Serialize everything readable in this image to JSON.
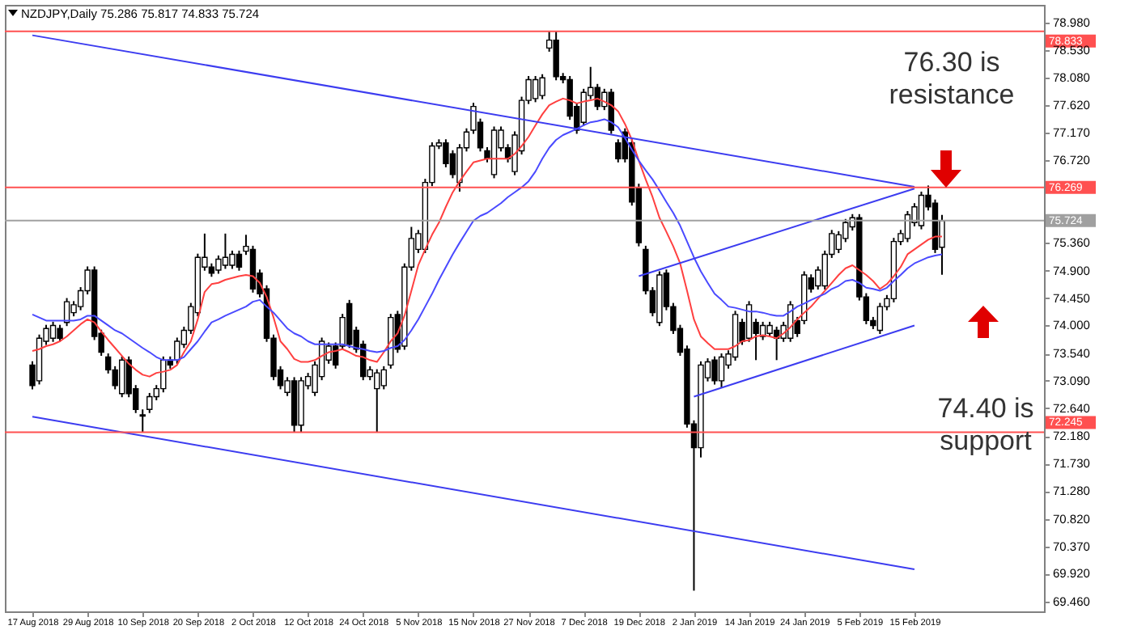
{
  "chart_data": {
    "type": "candlestick",
    "title": "NZDJPY,Daily 75.286 75.817 74.833 75.724",
    "categories": [
      "17 Aug 2018",
      null,
      null,
      null,
      null,
      null,
      null,
      null,
      "29 Aug 2018",
      null,
      null,
      null,
      null,
      null,
      null,
      null,
      "10 Sep 2018",
      null,
      null,
      null,
      null,
      null,
      null,
      null,
      "20 Sep 2018",
      null,
      null,
      null,
      null,
      null,
      null,
      null,
      "2 Oct 2018",
      null,
      null,
      null,
      null,
      null,
      null,
      null,
      "12 Oct 2018",
      null,
      null,
      null,
      null,
      null,
      null,
      null,
      "24 Oct 2018",
      null,
      null,
      null,
      null,
      null,
      null,
      null,
      "5 Nov 2018",
      null,
      null,
      null,
      null,
      null,
      null,
      null,
      "15 Nov 2018",
      null,
      null,
      null,
      null,
      null,
      null,
      null,
      "27 Nov 2018",
      null,
      null,
      null,
      null,
      null,
      null,
      null,
      "7 Dec 2018",
      null,
      null,
      null,
      null,
      null,
      null,
      null,
      "19 Dec 2018",
      null,
      null,
      null,
      null,
      null,
      null,
      null,
      "2 Jan 2019",
      null,
      null,
      null,
      null,
      null,
      null,
      null,
      "14 Jan 2019",
      null,
      null,
      null,
      null,
      null,
      null,
      null,
      "24 Jan 2019",
      null,
      null,
      null,
      null,
      null,
      null,
      null,
      "5 Feb 2019",
      null,
      null,
      null,
      null,
      null,
      null,
      null,
      "15 Feb 2019",
      null,
      null,
      null,
      null
    ],
    "ohlc": [
      [
        73.35,
        73.41,
        72.95,
        73.01
      ],
      [
        73.09,
        73.85,
        73.03,
        73.79
      ],
      [
        73.74,
        74.01,
        73.68,
        73.95
      ],
      [
        73.79,
        74.06,
        73.73,
        74.0
      ],
      [
        73.95,
        74.01,
        73.73,
        73.79
      ],
      [
        74.05,
        74.45,
        73.99,
        74.39
      ],
      [
        74.21,
        74.4,
        74.15,
        74.34
      ],
      [
        74.31,
        74.63,
        74.25,
        74.57
      ],
      [
        74.57,
        74.97,
        74.51,
        74.91
      ],
      [
        74.91,
        74.97,
        73.76,
        73.82
      ],
      [
        73.87,
        73.93,
        73.5,
        73.56
      ],
      [
        73.48,
        73.54,
        73.21,
        73.27
      ],
      [
        73.27,
        73.33,
        72.95,
        73.01
      ],
      [
        72.88,
        73.49,
        72.82,
        73.43
      ],
      [
        73.43,
        73.49,
        72.82,
        72.88
      ],
      [
        72.96,
        73.02,
        72.56,
        72.62
      ],
      [
        72.53,
        72.62,
        72.25,
        72.51
      ],
      [
        72.62,
        72.89,
        72.56,
        72.83
      ],
      [
        72.83,
        73.02,
        72.77,
        72.96
      ],
      [
        72.96,
        73.49,
        72.9,
        73.43
      ],
      [
        73.43,
        73.49,
        73.29,
        73.35
      ],
      [
        73.43,
        73.8,
        73.37,
        73.74
      ],
      [
        73.69,
        73.98,
        73.63,
        73.92
      ],
      [
        73.92,
        74.37,
        73.86,
        74.31
      ],
      [
        74.21,
        75.18,
        74.15,
        75.12
      ],
      [
        74.96,
        75.51,
        74.9,
        75.12
      ],
      [
        74.96,
        75.02,
        74.8,
        74.86
      ],
      [
        74.91,
        75.15,
        74.85,
        75.09
      ],
      [
        74.99,
        75.51,
        74.93,
        75.12
      ],
      [
        74.99,
        75.23,
        74.93,
        75.17
      ],
      [
        75.17,
        75.23,
        74.9,
        74.96
      ],
      [
        75.22,
        75.49,
        75.16,
        75.3
      ],
      [
        75.25,
        75.31,
        74.54,
        74.6
      ],
      [
        74.86,
        74.92,
        74.46,
        74.52
      ],
      [
        74.6,
        74.66,
        73.73,
        73.79
      ],
      [
        73.79,
        73.85,
        73.1,
        73.16
      ],
      [
        73.27,
        73.33,
        72.95,
        73.01
      ],
      [
        72.9,
        73.15,
        72.84,
        73.09
      ],
      [
        73.09,
        73.15,
        72.25,
        72.36
      ],
      [
        72.36,
        73.15,
        72.25,
        73.09
      ],
      [
        73.01,
        73.22,
        72.95,
        73.16
      ],
      [
        72.9,
        73.41,
        72.84,
        73.35
      ],
      [
        73.16,
        73.8,
        73.1,
        73.74
      ],
      [
        73.43,
        73.72,
        73.37,
        73.66
      ],
      [
        73.66,
        73.72,
        73.29,
        73.35
      ],
      [
        73.66,
        74.19,
        73.6,
        74.13
      ],
      [
        74.36,
        74.42,
        73.63,
        73.69
      ],
      [
        73.92,
        73.98,
        73.55,
        73.61
      ],
      [
        73.69,
        73.75,
        73.1,
        73.16
      ],
      [
        73.16,
        73.33,
        73.1,
        73.27
      ],
      [
        72.96,
        73.28,
        72.25,
        73.22
      ],
      [
        73.01,
        73.33,
        72.95,
        73.27
      ],
      [
        73.35,
        74.19,
        73.29,
        74.13
      ],
      [
        74.18,
        74.24,
        73.55,
        73.61
      ],
      [
        73.66,
        75.02,
        73.6,
        74.96
      ],
      [
        74.96,
        75.62,
        74.9,
        75.43
      ],
      [
        75.25,
        75.57,
        75.19,
        75.51
      ],
      [
        75.25,
        76.41,
        75.19,
        76.35
      ],
      [
        76.35,
        77.01,
        76.29,
        76.95
      ],
      [
        76.95,
        77.06,
        76.9,
        77.0
      ],
      [
        77.0,
        77.06,
        76.6,
        76.66
      ],
      [
        76.82,
        76.88,
        76.42,
        76.48
      ],
      [
        76.35,
        76.98,
        76.2,
        76.92
      ],
      [
        76.92,
        77.24,
        76.86,
        77.18
      ],
      [
        77.21,
        77.66,
        77.15,
        77.6
      ],
      [
        77.34,
        77.4,
        76.86,
        76.92
      ],
      [
        76.87,
        76.93,
        76.68,
        76.74
      ],
      [
        76.48,
        77.27,
        76.42,
        77.21
      ],
      [
        76.92,
        77.27,
        76.86,
        77.21
      ],
      [
        76.92,
        76.98,
        76.68,
        76.74
      ],
      [
        76.53,
        77.19,
        76.47,
        77.13
      ],
      [
        76.87,
        77.76,
        76.81,
        77.7
      ],
      [
        77.7,
        78.1,
        77.64,
        78.04
      ],
      [
        77.73,
        78.1,
        77.67,
        78.04
      ],
      [
        77.78,
        78.13,
        77.72,
        78.07
      ],
      [
        78.56,
        78.83,
        78.5,
        78.69
      ],
      [
        78.69,
        78.83,
        78.03,
        78.09
      ],
      [
        78.09,
        78.15,
        77.98,
        78.04
      ],
      [
        78.04,
        78.1,
        77.38,
        77.44
      ],
      [
        77.6,
        77.66,
        77.15,
        77.21
      ],
      [
        77.34,
        77.89,
        77.28,
        77.83
      ],
      [
        77.78,
        78.25,
        77.72,
        77.91
      ],
      [
        77.91,
        77.97,
        77.54,
        77.6
      ],
      [
        77.6,
        77.89,
        77.54,
        77.83
      ],
      [
        77.83,
        77.89,
        77.15,
        77.21
      ],
      [
        77.0,
        77.06,
        76.68,
        76.74
      ],
      [
        77.18,
        77.24,
        76.68,
        76.74
      ],
      [
        77.0,
        77.06,
        75.97,
        76.03
      ],
      [
        76.27,
        76.33,
        75.3,
        75.36
      ],
      [
        75.25,
        75.31,
        74.51,
        74.57
      ],
      [
        74.57,
        74.63,
        74.15,
        74.21
      ],
      [
        74.05,
        74.89,
        73.99,
        74.83
      ],
      [
        74.86,
        74.92,
        74.25,
        74.31
      ],
      [
        74.31,
        74.37,
        73.86,
        73.92
      ],
      [
        73.95,
        74.01,
        73.5,
        73.56
      ],
      [
        73.61,
        73.67,
        72.32,
        72.38
      ],
      [
        72.38,
        72.44,
        69.64,
        71.99
      ],
      [
        71.99,
        73.41,
        71.83,
        73.35
      ],
      [
        73.14,
        73.46,
        73.08,
        73.4
      ],
      [
        73.43,
        73.49,
        73.03,
        73.09
      ],
      [
        73.09,
        73.54,
        72.97,
        73.48
      ],
      [
        73.35,
        73.59,
        73.29,
        73.53
      ],
      [
        73.48,
        74.24,
        73.42,
        74.18
      ],
      [
        74.05,
        74.11,
        73.68,
        73.74
      ],
      [
        73.79,
        74.4,
        73.73,
        74.34
      ],
      [
        74.05,
        74.11,
        73.43,
        73.87
      ],
      [
        73.82,
        74.06,
        73.76,
        74.0
      ],
      [
        73.87,
        74.06,
        73.81,
        74.0
      ],
      [
        73.92,
        73.98,
        73.43,
        73.79
      ],
      [
        73.79,
        74.06,
        73.73,
        74.0
      ],
      [
        73.79,
        74.4,
        73.73,
        74.34
      ],
      [
        74.08,
        74.14,
        73.81,
        73.87
      ],
      [
        74.08,
        74.89,
        74.02,
        74.83
      ],
      [
        74.78,
        74.84,
        74.54,
        74.6
      ],
      [
        74.65,
        74.97,
        74.59,
        74.91
      ],
      [
        74.65,
        75.23,
        74.59,
        75.17
      ],
      [
        75.17,
        75.57,
        75.11,
        75.51
      ],
      [
        75.25,
        75.55,
        75.19,
        75.49
      ],
      [
        75.43,
        75.75,
        75.37,
        75.69
      ],
      [
        75.62,
        75.83,
        75.56,
        75.77
      ],
      [
        75.77,
        75.83,
        74.41,
        74.47
      ],
      [
        74.47,
        74.53,
        74.02,
        74.08
      ],
      [
        74.08,
        74.14,
        73.94,
        74.0
      ],
      [
        73.92,
        74.37,
        73.86,
        74.31
      ],
      [
        74.31,
        74.5,
        74.25,
        74.44
      ],
      [
        74.44,
        75.44,
        74.38,
        75.38
      ],
      [
        75.38,
        75.57,
        75.32,
        75.51
      ],
      [
        75.43,
        75.88,
        75.37,
        75.82
      ],
      [
        75.69,
        76.01,
        75.63,
        75.95
      ],
      [
        75.64,
        76.2,
        75.58,
        76.14
      ],
      [
        76.14,
        76.3,
        75.89,
        75.95
      ],
      [
        76.01,
        76.07,
        75.19,
        75.25
      ],
      [
        75.286,
        75.817,
        74.833,
        75.724
      ]
    ],
    "series": [
      {
        "type": "line",
        "color": "#ff4040",
        "values": [
          73.58,
          73.61,
          73.66,
          73.69,
          73.74,
          73.82,
          73.92,
          74.02,
          74.1,
          74.05,
          73.9,
          73.76,
          73.63,
          73.5,
          73.37,
          73.27,
          73.19,
          73.16,
          73.22,
          73.24,
          73.27,
          73.35,
          73.56,
          73.74,
          74.1,
          74.55,
          74.68,
          74.7,
          74.75,
          74.78,
          74.81,
          74.83,
          74.81,
          74.7,
          74.47,
          74.13,
          73.74,
          73.61,
          73.45,
          73.4,
          73.4,
          73.43,
          73.5,
          73.56,
          73.58,
          73.61,
          73.56,
          73.5,
          73.48,
          73.43,
          73.4,
          73.56,
          73.74,
          73.87,
          74.16,
          74.57,
          74.99,
          75.25,
          75.49,
          75.69,
          75.95,
          76.19,
          76.37,
          76.53,
          76.68,
          76.71,
          76.74,
          76.74,
          76.74,
          76.74,
          76.82,
          76.95,
          77.1,
          77.29,
          77.47,
          77.62,
          77.68,
          77.73,
          77.7,
          77.65,
          77.68,
          77.7,
          77.73,
          77.68,
          77.62,
          77.52,
          77.31,
          77.05,
          76.71,
          76.4,
          76.11,
          75.77,
          75.54,
          75.3,
          75.02,
          74.57,
          74.1,
          73.82,
          73.71,
          73.61,
          73.61,
          73.61,
          73.66,
          73.74,
          73.76,
          73.82,
          73.84,
          73.82,
          73.79,
          73.87,
          73.97,
          74.1,
          74.21,
          74.31,
          74.44,
          74.57,
          74.7,
          74.83,
          74.94,
          74.99,
          74.91,
          74.83,
          74.73,
          74.6,
          74.68,
          74.81,
          74.96,
          75.17,
          75.25,
          75.33,
          75.41,
          75.46,
          75.46
        ]
      },
      {
        "type": "line",
        "color": "#4a4aff",
        "values": [
          74.18,
          74.13,
          74.08,
          74.08,
          74.08,
          74.08,
          74.08,
          74.1,
          74.16,
          74.16,
          74.08,
          74.0,
          73.92,
          73.87,
          73.79,
          73.71,
          73.63,
          73.56,
          73.48,
          73.43,
          73.43,
          73.43,
          73.48,
          73.61,
          73.74,
          73.9,
          74.05,
          74.1,
          74.16,
          74.21,
          74.26,
          74.31,
          74.39,
          74.42,
          74.31,
          74.21,
          74.08,
          73.95,
          73.87,
          73.82,
          73.74,
          73.69,
          73.69,
          73.69,
          73.69,
          73.69,
          73.66,
          73.63,
          73.61,
          73.58,
          73.56,
          73.58,
          73.63,
          73.66,
          73.76,
          73.92,
          74.1,
          74.31,
          74.52,
          74.75,
          74.96,
          75.17,
          75.36,
          75.54,
          75.72,
          75.8,
          75.85,
          75.93,
          76.01,
          76.11,
          76.19,
          76.27,
          76.37,
          76.53,
          76.74,
          76.92,
          77.05,
          77.13,
          77.18,
          77.23,
          77.29,
          77.34,
          77.36,
          77.39,
          77.34,
          77.26,
          77.08,
          76.89,
          76.71,
          76.55,
          76.4,
          76.22,
          76.03,
          75.85,
          75.64,
          75.38,
          75.12,
          74.89,
          74.7,
          74.52,
          74.42,
          74.31,
          74.29,
          74.26,
          74.23,
          74.23,
          74.21,
          74.18,
          74.16,
          74.16,
          74.23,
          74.31,
          74.36,
          74.42,
          74.47,
          74.52,
          74.6,
          74.65,
          74.73,
          74.75,
          74.7,
          74.62,
          74.6,
          74.57,
          74.62,
          74.73,
          74.83,
          74.94,
          75.02,
          75.07,
          75.12,
          75.15,
          75.17
        ]
      },
      {
        "type": "line",
        "color": "#3c3cf0",
        "x": [
          "17 Aug 2018",
          "15 Feb 2019"
        ],
        "values": [
          78.77,
          76.28
        ]
      },
      {
        "type": "line",
        "color": "#3c3cf0",
        "x": [
          "17 Aug 2018",
          "15 Feb 2019"
        ],
        "values": [
          72.5,
          69.99
        ]
      },
      {
        "type": "line",
        "color": "#3c3cf0",
        "x": [
          "19 Dec 2018",
          "15 Feb 2019"
        ],
        "values": [
          74.81,
          76.25
        ]
      },
      {
        "type": "line",
        "color": "#3c3cf0",
        "x": [
          "2 Jan 2019",
          "15 Feb 2019"
        ],
        "values": [
          72.83,
          74.0
        ]
      }
    ],
    "ylim": [
      69.3,
      79.27
    ],
    "yticks": [
      {
        "value": 78.98,
        "label": "78.980"
      },
      {
        "value": 78.53,
        "label": "78.530"
      },
      {
        "value": 78.08,
        "label": "78.080"
      },
      {
        "value": 77.62,
        "label": "77.620"
      },
      {
        "value": 77.17,
        "label": "77.170"
      },
      {
        "value": 76.72,
        "label": "76.720"
      },
      {
        "value": 75.36,
        "label": "75.360"
      },
      {
        "value": 74.9,
        "label": "74.900"
      },
      {
        "value": 74.45,
        "label": "74.450"
      },
      {
        "value": 74.0,
        "label": "74.000"
      },
      {
        "value": 73.54,
        "label": "73.540"
      },
      {
        "value": 73.09,
        "label": "73.090"
      },
      {
        "value": 72.64,
        "label": "72.640"
      },
      {
        "value": 72.18,
        "label": "72.180"
      },
      {
        "value": 71.73,
        "label": "71.730"
      },
      {
        "value": 71.28,
        "label": "71.280"
      },
      {
        "value": 70.82,
        "label": "70.820"
      },
      {
        "value": 70.37,
        "label": "70.370"
      },
      {
        "value": 69.92,
        "label": "69.920"
      },
      {
        "value": 69.46,
        "label": "69.460"
      }
    ],
    "ref_lines": [
      {
        "axis": "y",
        "value": 78.833,
        "label": "78.833",
        "color": "#ff5050"
      },
      {
        "axis": "y",
        "value": 76.269,
        "label": "76.269",
        "color": "#ff5050"
      },
      {
        "axis": "y",
        "value": 75.724,
        "label": "75.724",
        "color": "#a0a0a0"
      },
      {
        "axis": "y",
        "value": 72.245,
        "label": "72.245",
        "color": "#ff5050"
      }
    ],
    "annotations": [
      "76.30 is resistance",
      "74.40 is support"
    ],
    "grid": false
  }
}
